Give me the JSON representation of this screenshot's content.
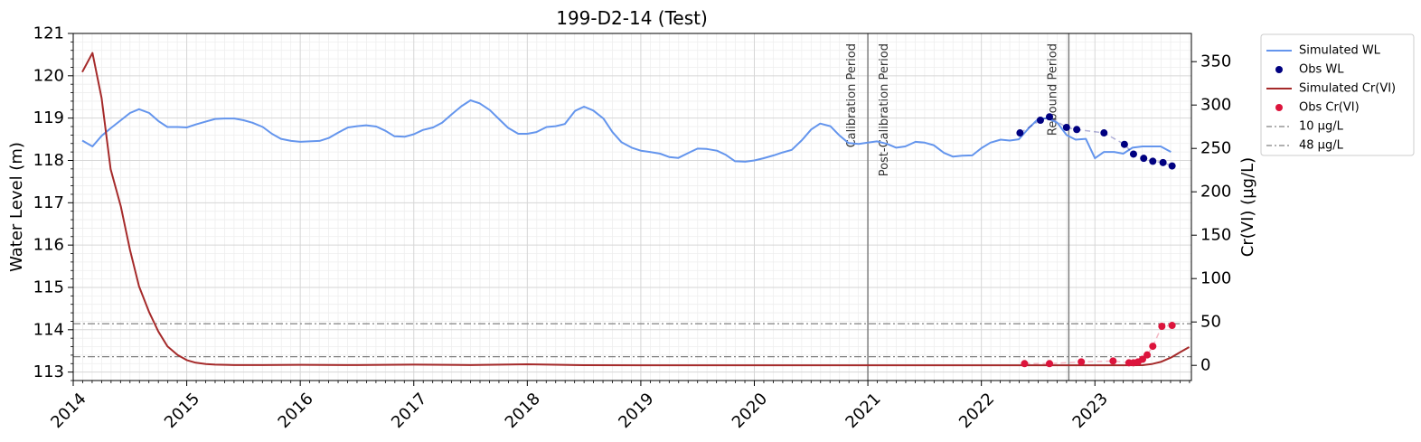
{
  "chart_data": {
    "type": "line",
    "title": "199-D2-14 (Test)",
    "xlabel": "",
    "ylabel": "Water Level (m)",
    "y2label": "Cr(VI) (µg/L)",
    "xlim": [
      2014.0,
      2023.85
    ],
    "ylim": [
      112.8,
      121
    ],
    "y2lim": [
      -17.5,
      382.5
    ],
    "grid": true,
    "legend_position": "outside-right",
    "x_ticks": [
      "2014",
      "2015",
      "2016",
      "2017",
      "2018",
      "2019",
      "2020",
      "2021",
      "2022",
      "2023"
    ],
    "y_ticks": [
      "113",
      "114",
      "115",
      "116",
      "117",
      "118",
      "119",
      "120",
      "121"
    ],
    "y2_ticks": [
      "0",
      "50",
      "100",
      "150",
      "200",
      "250",
      "300",
      "350"
    ],
    "legend": [
      {
        "label": "Simulated WL",
        "kind": "line",
        "color": "#6495ED"
      },
      {
        "label": "Obs WL",
        "kind": "dot",
        "color": "#000080"
      },
      {
        "label": "Simulated Cr(VI)",
        "kind": "line",
        "color": "#A52A2A"
      },
      {
        "label": "Obs Cr(VI)",
        "kind": "dot",
        "color": "#DC143C"
      },
      {
        "label": "10 µg/L",
        "kind": "dashdot",
        "color": "#808080"
      },
      {
        "label": "48 µg/L",
        "kind": "dashdot",
        "color": "#808080"
      }
    ],
    "periods": [
      {
        "label": "Calibration Period",
        "x": 2021.0,
        "side": "left"
      },
      {
        "label": "Post-Calibration Period",
        "x": 2021.0,
        "side": "right"
      },
      {
        "label": "Rebound Period",
        "x": 2022.77,
        "side": "left"
      }
    ],
    "thresholds": [
      {
        "label": "10 µg/L",
        "value": 10
      },
      {
        "label": "48 µg/L",
        "value": 48
      }
    ],
    "series": [
      {
        "name": "Simulated WL",
        "axis": "left",
        "color": "#6495ED",
        "x": [
          2014.08,
          2014.17,
          2014.25,
          2014.33,
          2014.42,
          2014.5,
          2014.58,
          2014.67,
          2014.75,
          2014.83,
          2014.92,
          2015.0,
          2015.08,
          2015.17,
          2015.25,
          2015.33,
          2015.42,
          2015.5,
          2015.58,
          2015.67,
          2015.75,
          2015.83,
          2015.92,
          2016.0,
          2016.08,
          2016.17,
          2016.25,
          2016.33,
          2016.42,
          2016.5,
          2016.58,
          2016.67,
          2016.75,
          2016.83,
          2016.92,
          2017.0,
          2017.08,
          2017.17,
          2017.25,
          2017.33,
          2017.42,
          2017.5,
          2017.58,
          2017.67,
          2017.75,
          2017.83,
          2017.92,
          2018.0,
          2018.08,
          2018.17,
          2018.25,
          2018.33,
          2018.42,
          2018.5,
          2018.58,
          2018.67,
          2018.75,
          2018.83,
          2018.92,
          2019.0,
          2019.08,
          2019.17,
          2019.25,
          2019.33,
          2019.42,
          2019.5,
          2019.58,
          2019.67,
          2019.75,
          2019.83,
          2019.92,
          2020.0,
          2020.08,
          2020.17,
          2020.25,
          2020.33,
          2020.42,
          2020.5,
          2020.58,
          2020.67,
          2020.75,
          2020.83,
          2020.92,
          2021.0,
          2021.08,
          2021.17,
          2021.25,
          2021.33,
          2021.42,
          2021.5,
          2021.58,
          2021.67,
          2021.75,
          2021.83,
          2021.92,
          2022.0,
          2022.08,
          2022.17,
          2022.25,
          2022.33,
          2022.42,
          2022.5,
          2022.58,
          2022.67,
          2022.75,
          2022.83,
          2022.92,
          2023.0,
          2023.08,
          2023.17,
          2023.25,
          2023.33,
          2023.42,
          2023.5,
          2023.58,
          2023.67
        ],
        "values": [
          118.47,
          118.33,
          118.58,
          118.76,
          118.95,
          119.12,
          119.21,
          119.12,
          118.93,
          118.79,
          118.79,
          118.78,
          118.85,
          118.92,
          118.98,
          118.99,
          118.99,
          118.95,
          118.89,
          118.79,
          118.63,
          118.51,
          118.46,
          118.44,
          118.45,
          118.46,
          118.53,
          118.65,
          118.78,
          118.81,
          118.83,
          118.8,
          118.7,
          118.57,
          118.56,
          118.62,
          118.72,
          118.78,
          118.89,
          119.08,
          119.28,
          119.42,
          119.35,
          119.19,
          118.98,
          118.77,
          118.63,
          118.63,
          118.67,
          118.79,
          118.81,
          118.86,
          119.17,
          119.27,
          119.18,
          118.99,
          118.67,
          118.43,
          118.3,
          118.23,
          118.2,
          118.16,
          118.08,
          118.06,
          118.18,
          118.28,
          118.27,
          118.23,
          118.13,
          117.98,
          117.97,
          118.0,
          118.05,
          118.12,
          118.19,
          118.25,
          118.48,
          118.73,
          118.87,
          118.81,
          118.59,
          118.41,
          118.39,
          118.42,
          118.45,
          118.39,
          118.3,
          118.33,
          118.44,
          118.42,
          118.36,
          118.18,
          118.09,
          118.11,
          118.12,
          118.29,
          118.42,
          118.49,
          118.47,
          118.5,
          118.77,
          118.98,
          119.0,
          118.89,
          118.6,
          118.49,
          118.51,
          118.05,
          118.2,
          118.2,
          118.16,
          118.3,
          118.33,
          118.33,
          118.33,
          118.2
        ]
      },
      {
        "name": "Obs WL",
        "axis": "left",
        "color": "#000080",
        "x": [
          2022.34,
          2022.52,
          2022.6,
          2022.75,
          2022.84,
          2023.08,
          2023.26,
          2023.34,
          2023.43,
          2023.51,
          2023.6,
          2023.68
        ],
        "values": [
          118.65,
          118.95,
          119.03,
          118.78,
          118.73,
          118.65,
          118.38,
          118.15,
          118.05,
          117.98,
          117.95,
          117.87
        ]
      },
      {
        "name": "Simulated Cr(VI)",
        "axis": "right",
        "color": "#A52A2A",
        "x": [
          2014.08,
          2014.17,
          2014.25,
          2014.33,
          2014.42,
          2014.5,
          2014.58,
          2014.67,
          2014.75,
          2014.83,
          2014.92,
          2015.0,
          2015.08,
          2015.17,
          2015.25,
          2015.42,
          2015.67,
          2016.0,
          2016.5,
          2017.0,
          2017.5,
          2018.0,
          2018.5,
          2019.0,
          2019.5,
          2020.0,
          2020.5,
          2021.0,
          2021.5,
          2022.0,
          2022.5,
          2023.0,
          2023.25,
          2023.42,
          2023.5,
          2023.58,
          2023.67,
          2023.75,
          2023.83
        ],
        "values": [
          338,
          360,
          308,
          226,
          183,
          133,
          91,
          61,
          39,
          22,
          12,
          6,
          3,
          1.5,
          0.8,
          0.3,
          0.3,
          0.6,
          0.3,
          0.8,
          0.3,
          1.2,
          0.2,
          0.1,
          0.1,
          0.1,
          0.1,
          0.1,
          0.1,
          0.1,
          0.1,
          0.1,
          0.1,
          0.2,
          1.5,
          4,
          9,
          15,
          21
        ]
      },
      {
        "name": "Obs Cr(VI)",
        "axis": "right",
        "color": "#DC143C",
        "x": [
          2022.38,
          2022.6,
          2022.88,
          2023.16,
          2023.3,
          2023.34,
          2023.38,
          2023.42,
          2023.46,
          2023.51,
          2023.59,
          2023.68
        ],
        "values": [
          2,
          2,
          4,
          5,
          3,
          3,
          4,
          7,
          12,
          22,
          45,
          46
        ]
      }
    ]
  }
}
